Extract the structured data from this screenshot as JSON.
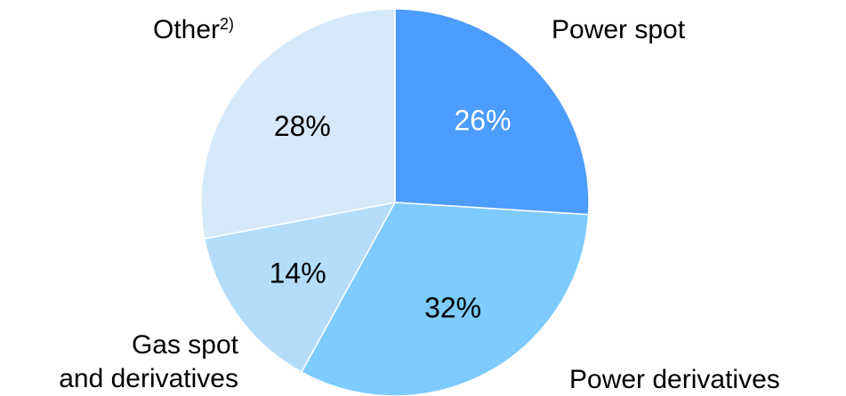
{
  "chart_data": {
    "type": "pie",
    "slices": [
      {
        "name": "Power spot",
        "value": 26,
        "label": "26%",
        "color": "#4d9cff",
        "label_color": "#ffffff"
      },
      {
        "name": "Power derivatives",
        "value": 32,
        "label": "32%",
        "color": "#7dcbff",
        "label_color": "#000000"
      },
      {
        "name": "Gas spot and derivatives",
        "value": 14,
        "label": "14%",
        "color": "#b3ddfb",
        "label_color": "#000000"
      },
      {
        "name": "Other",
        "value": 28,
        "label": "28%",
        "color": "#d6e9fb",
        "label_color": "#000000"
      }
    ],
    "category_labels": {
      "power_spot": "Power spot",
      "power_derivatives": "Power derivatives",
      "gas_line1": "Gas spot",
      "gas_line2": "and derivatives",
      "other": "Other",
      "other_footnote": "2)"
    },
    "start": "12 o'clock",
    "direction": "clockwise",
    "legend": "none"
  }
}
